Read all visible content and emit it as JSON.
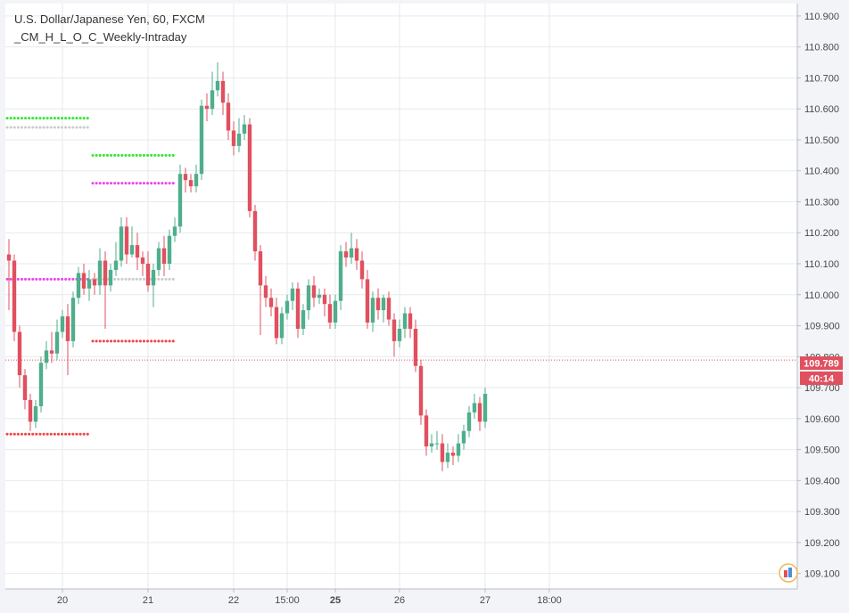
{
  "header": {
    "symbol_line": "U.S. Dollar/Japanese Yen, 60, FXCM",
    "indicator_line": "_CM_H_L_O_C_Weekly-Intraday"
  },
  "price_badge": {
    "value": "109.789",
    "countdown": "40:14",
    "color": "#e0505f"
  },
  "colors": {
    "up": "#4fae8b",
    "down": "#e0505f",
    "level_high": "#33e833",
    "level_open": "#cccccc",
    "level_close": "#ee44ee",
    "level_low": "#ee4444",
    "grid": "#e6eaee"
  },
  "icons": {
    "logo": "tradingview-badge-icon"
  },
  "chart_data": {
    "type": "candlestick",
    "title": "U.S. Dollar/Japanese Yen, 60, FXCM",
    "ylim": [
      109.05,
      110.94
    ],
    "y_ticks": [
      "109.100",
      "109.200",
      "109.300",
      "109.400",
      "109.500",
      "109.600",
      "109.700",
      "109.800",
      "109.900",
      "110.000",
      "110.100",
      "110.200",
      "110.300",
      "110.400",
      "110.500",
      "110.600",
      "110.700",
      "110.800",
      "110.900"
    ],
    "x_ticks": [
      {
        "label": "20",
        "i": 10,
        "bold": false
      },
      {
        "label": "21",
        "i": 26,
        "bold": false
      },
      {
        "label": "22",
        "i": 42,
        "bold": false
      },
      {
        "label": "15:00",
        "i": 52,
        "bold": false
      },
      {
        "label": "25",
        "i": 61,
        "bold": true
      },
      {
        "label": "26",
        "i": 73,
        "bold": false
      },
      {
        "label": "27",
        "i": 89,
        "bold": false
      },
      {
        "label": "18:00",
        "i": 101,
        "bold": false
      }
    ],
    "current_price": 109.789,
    "candles": [
      [
        110.13,
        110.11,
        110.18,
        109.95
      ],
      [
        110.11,
        109.88,
        110.13,
        109.85
      ],
      [
        109.88,
        109.74,
        109.9,
        109.7
      ],
      [
        109.74,
        109.66,
        109.76,
        109.63
      ],
      [
        109.66,
        109.59,
        109.68,
        109.56
      ],
      [
        109.59,
        109.64,
        109.66,
        109.57
      ],
      [
        109.64,
        109.78,
        109.8,
        109.62
      ],
      [
        109.78,
        109.82,
        109.85,
        109.76
      ],
      [
        109.82,
        109.81,
        109.88,
        109.78
      ],
      [
        109.81,
        109.88,
        109.92,
        109.79
      ],
      [
        109.88,
        109.93,
        109.95,
        109.86
      ],
      [
        109.93,
        109.85,
        109.97,
        109.74
      ],
      [
        109.85,
        109.99,
        110.01,
        109.83
      ],
      [
        109.99,
        110.07,
        110.09,
        109.97
      ],
      [
        110.07,
        110.02,
        110.1,
        110.0
      ],
      [
        110.02,
        110.05,
        110.08,
        109.98
      ],
      [
        110.05,
        110.03,
        110.07,
        110.0
      ],
      [
        110.03,
        110.11,
        110.15,
        110.0
      ],
      [
        110.11,
        110.03,
        110.14,
        109.89
      ],
      [
        110.03,
        110.08,
        110.1,
        110.01
      ],
      [
        110.08,
        110.11,
        110.17,
        110.06
      ],
      [
        110.11,
        110.22,
        110.25,
        110.09
      ],
      [
        110.22,
        110.13,
        110.25,
        110.1
      ],
      [
        110.13,
        110.16,
        110.22,
        110.12
      ],
      [
        110.16,
        110.12,
        110.2,
        110.08
      ],
      [
        110.12,
        110.1,
        110.14,
        110.06
      ],
      [
        110.1,
        110.03,
        110.14,
        110.01
      ],
      [
        110.03,
        110.08,
        110.1,
        109.96
      ],
      [
        110.08,
        110.15,
        110.17,
        110.06
      ],
      [
        110.15,
        110.1,
        110.19,
        110.06
      ],
      [
        110.1,
        110.19,
        110.21,
        110.08
      ],
      [
        110.19,
        110.22,
        110.25,
        110.17
      ],
      [
        110.22,
        110.39,
        110.42,
        110.2
      ],
      [
        110.39,
        110.37,
        110.41,
        110.33
      ],
      [
        110.37,
        110.35,
        110.39,
        110.33
      ],
      [
        110.35,
        110.39,
        110.42,
        110.33
      ],
      [
        110.39,
        110.61,
        110.63,
        110.37
      ],
      [
        110.61,
        110.6,
        110.65,
        110.56
      ],
      [
        110.6,
        110.66,
        110.72,
        110.58
      ],
      [
        110.66,
        110.69,
        110.75,
        110.64
      ],
      [
        110.69,
        110.62,
        110.72,
        110.58
      ],
      [
        110.62,
        110.53,
        110.65,
        110.5
      ],
      [
        110.53,
        110.48,
        110.56,
        110.45
      ],
      [
        110.48,
        110.52,
        110.57,
        110.46
      ],
      [
        110.52,
        110.55,
        110.58,
        110.5
      ],
      [
        110.55,
        110.27,
        110.57,
        110.25
      ],
      [
        110.27,
        110.14,
        110.29,
        110.11
      ],
      [
        110.14,
        110.03,
        110.16,
        109.87
      ],
      [
        110.03,
        109.99,
        110.06,
        109.96
      ],
      [
        109.99,
        109.96,
        110.02,
        109.93
      ],
      [
        109.96,
        109.86,
        109.99,
        109.84
      ],
      [
        109.86,
        109.94,
        109.96,
        109.84
      ],
      [
        109.94,
        109.98,
        110.0,
        109.92
      ],
      [
        109.98,
        110.02,
        110.04,
        109.95
      ],
      [
        110.02,
        109.89,
        110.04,
        109.86
      ],
      [
        109.89,
        109.95,
        109.97,
        109.87
      ],
      [
        109.95,
        110.03,
        110.05,
        109.92
      ],
      [
        110.03,
        109.99,
        110.06,
        109.96
      ],
      [
        109.99,
        110.0,
        110.02,
        109.97
      ],
      [
        110.0,
        109.97,
        110.02,
        109.93
      ],
      [
        109.97,
        109.91,
        110.0,
        109.89
      ],
      [
        109.91,
        109.98,
        110.0,
        109.89
      ],
      [
        109.98,
        110.14,
        110.16,
        109.95
      ],
      [
        110.14,
        110.12,
        110.17,
        110.09
      ],
      [
        110.12,
        110.15,
        110.2,
        110.1
      ],
      [
        110.15,
        110.11,
        110.18,
        110.08
      ],
      [
        110.11,
        110.05,
        110.14,
        110.02
      ],
      [
        110.05,
        109.91,
        110.08,
        109.89
      ],
      [
        109.91,
        109.99,
        110.01,
        109.88
      ],
      [
        109.99,
        109.95,
        110.02,
        109.92
      ],
      [
        109.95,
        109.99,
        110.0,
        109.91
      ],
      [
        109.99,
        109.92,
        110.01,
        109.9
      ],
      [
        109.92,
        109.85,
        109.94,
        109.8
      ],
      [
        109.85,
        109.89,
        109.92,
        109.83
      ],
      [
        109.89,
        109.94,
        109.96,
        109.86
      ],
      [
        109.94,
        109.89,
        109.96,
        109.86
      ],
      [
        109.89,
        109.77,
        109.92,
        109.75
      ],
      [
        109.77,
        109.61,
        109.79,
        109.58
      ],
      [
        109.61,
        109.51,
        109.63,
        109.48
      ],
      [
        109.51,
        109.52,
        109.55,
        109.49
      ],
      [
        109.52,
        109.52,
        109.56,
        109.5
      ],
      [
        109.52,
        109.46,
        109.55,
        109.43
      ],
      [
        109.46,
        109.49,
        109.52,
        109.44
      ],
      [
        109.49,
        109.48,
        109.51,
        109.45
      ],
      [
        109.48,
        109.52,
        109.55,
        109.46
      ],
      [
        109.52,
        109.56,
        109.58,
        109.5
      ],
      [
        109.56,
        109.62,
        109.64,
        109.54
      ],
      [
        109.62,
        109.65,
        109.68,
        109.6
      ],
      [
        109.65,
        109.59,
        109.67,
        109.56
      ],
      [
        109.59,
        109.68,
        109.7,
        109.57
      ]
    ],
    "levels": {
      "week1": {
        "i0": 0,
        "i1": 15,
        "high": 110.57,
        "open": 110.54,
        "close": 110.05,
        "low": 109.55
      },
      "week2": {
        "i0": 16,
        "i1": 31,
        "high": 110.45,
        "open": 110.05,
        "close": 110.36,
        "low": 109.85
      }
    }
  }
}
